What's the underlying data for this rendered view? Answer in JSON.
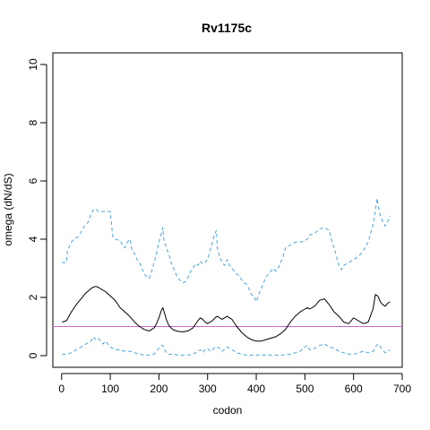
{
  "chart_data": {
    "type": "line",
    "title": "Rv1175c",
    "xlabel": "codon",
    "ylabel": "omega (dN/dS)",
    "xlim": [
      -18,
      700
    ],
    "ylim": [
      -0.4,
      10.4
    ],
    "x_ticks": [
      0,
      100,
      200,
      300,
      400,
      500,
      600,
      700
    ],
    "y_ticks": [
      0,
      2,
      4,
      6,
      8,
      10
    ],
    "reference_line": {
      "y": 1,
      "color": "#cc66cc"
    },
    "series": [
      {
        "style": "dashed",
        "color": "#4aa3df",
        "x": [
          1,
          10,
          12,
          20,
          25,
          35,
          45,
          55,
          60,
          65,
          70,
          75,
          80,
          90,
          100,
          105,
          110,
          120,
          125,
          130,
          135,
          140,
          145,
          150,
          155,
          160,
          165,
          170,
          175,
          180,
          185,
          190,
          195,
          200,
          205,
          208,
          210,
          215,
          220,
          225,
          230,
          235,
          240,
          245,
          250,
          255,
          260,
          265,
          270,
          275,
          280,
          285,
          290,
          295,
          300,
          305,
          310,
          315,
          318,
          320,
          325,
          330,
          335,
          340,
          345,
          350,
          355,
          360,
          365,
          370,
          375,
          380,
          385,
          390,
          395,
          400,
          405,
          410,
          415,
          420,
          425,
          430,
          435,
          440,
          445,
          450,
          455,
          460,
          470,
          480,
          490,
          500,
          505,
          510,
          520,
          530,
          540,
          550,
          555,
          560,
          565,
          570,
          575,
          580,
          590,
          600,
          610,
          620,
          630,
          635,
          640,
          645,
          648,
          650,
          655,
          660,
          665,
          670,
          675
        ],
        "y": [
          3.2,
          3.2,
          3.6,
          3.9,
          4.0,
          4.1,
          4.4,
          4.6,
          4.85,
          5.0,
          5.05,
          4.95,
          4.95,
          4.95,
          4.95,
          4.1,
          4.0,
          3.95,
          3.8,
          3.7,
          3.9,
          4.0,
          3.6,
          3.5,
          3.3,
          3.2,
          3.0,
          2.8,
          2.7,
          2.65,
          2.9,
          3.2,
          3.5,
          3.9,
          4.2,
          4.4,
          4.0,
          3.7,
          3.5,
          3.2,
          3.0,
          2.8,
          2.65,
          2.55,
          2.5,
          2.55,
          2.7,
          2.9,
          3.0,
          3.15,
          3.1,
          3.25,
          3.15,
          3.2,
          3.3,
          3.6,
          3.9,
          4.2,
          4.3,
          3.7,
          3.4,
          3.2,
          3.1,
          3.3,
          3.1,
          3.0,
          2.9,
          2.8,
          2.75,
          2.6,
          2.5,
          2.45,
          2.3,
          2.1,
          2.05,
          1.85,
          2.1,
          2.3,
          2.5,
          2.7,
          2.8,
          2.9,
          3.0,
          2.9,
          3.0,
          3.2,
          3.4,
          3.7,
          3.8,
          3.9,
          3.9,
          3.95,
          4.0,
          4.15,
          4.2,
          4.35,
          4.4,
          4.3,
          3.95,
          3.7,
          3.4,
          3.1,
          2.95,
          3.1,
          3.2,
          3.3,
          3.4,
          3.6,
          3.9,
          4.2,
          4.5,
          5.0,
          5.4,
          5.2,
          4.8,
          4.6,
          4.45,
          4.6,
          4.8
        ]
      },
      {
        "style": "solid",
        "color": "#000000",
        "x": [
          1,
          10,
          20,
          30,
          40,
          50,
          60,
          65,
          70,
          75,
          80,
          90,
          100,
          110,
          120,
          130,
          140,
          150,
          160,
          170,
          180,
          190,
          195,
          200,
          205,
          208,
          210,
          215,
          220,
          225,
          230,
          240,
          250,
          260,
          270,
          280,
          285,
          290,
          295,
          300,
          305,
          310,
          315,
          320,
          325,
          330,
          340,
          350,
          360,
          370,
          380,
          390,
          400,
          410,
          420,
          430,
          440,
          450,
          460,
          470,
          480,
          490,
          500,
          505,
          510,
          520,
          530,
          540,
          550,
          560,
          570,
          580,
          590,
          600,
          610,
          620,
          630,
          640,
          645,
          650,
          655,
          660,
          665,
          670,
          675
        ],
        "y": [
          1.15,
          1.2,
          1.5,
          1.75,
          1.95,
          2.15,
          2.3,
          2.35,
          2.38,
          2.35,
          2.3,
          2.2,
          2.05,
          1.9,
          1.65,
          1.5,
          1.35,
          1.15,
          1.0,
          0.9,
          0.85,
          0.95,
          1.1,
          1.3,
          1.55,
          1.65,
          1.55,
          1.25,
          1.05,
          0.95,
          0.88,
          0.83,
          0.82,
          0.85,
          0.95,
          1.2,
          1.3,
          1.25,
          1.15,
          1.1,
          1.15,
          1.2,
          1.3,
          1.35,
          1.3,
          1.25,
          1.35,
          1.25,
          1.0,
          0.8,
          0.65,
          0.55,
          0.5,
          0.5,
          0.55,
          0.6,
          0.65,
          0.75,
          0.9,
          1.15,
          1.35,
          1.5,
          1.6,
          1.65,
          1.6,
          1.7,
          1.9,
          1.95,
          1.75,
          1.5,
          1.35,
          1.15,
          1.1,
          1.3,
          1.2,
          1.1,
          1.15,
          1.6,
          2.1,
          2.05,
          1.85,
          1.75,
          1.7,
          1.8,
          1.85
        ]
      },
      {
        "style": "dashed",
        "color": "#4aa3df",
        "x": [
          1,
          10,
          20,
          30,
          40,
          50,
          60,
          65,
          70,
          75,
          80,
          85,
          90,
          100,
          110,
          120,
          130,
          140,
          150,
          160,
          170,
          180,
          190,
          195,
          200,
          205,
          208,
          210,
          215,
          220,
          230,
          240,
          250,
          260,
          270,
          280,
          285,
          290,
          295,
          300,
          305,
          310,
          315,
          320,
          325,
          330,
          340,
          350,
          360,
          370,
          380,
          390,
          400,
          410,
          420,
          430,
          440,
          450,
          460,
          470,
          480,
          490,
          500,
          505,
          510,
          520,
          530,
          540,
          545,
          550,
          560,
          570,
          580,
          590,
          600,
          610,
          620,
          630,
          640,
          645,
          650,
          655,
          660,
          665,
          670,
          675
        ],
        "y": [
          0.05,
          0.05,
          0.1,
          0.2,
          0.3,
          0.4,
          0.5,
          0.65,
          0.55,
          0.6,
          0.5,
          0.4,
          0.5,
          0.3,
          0.2,
          0.2,
          0.15,
          0.15,
          0.1,
          0.05,
          0.02,
          0.02,
          0.05,
          0.15,
          0.25,
          0.35,
          0.35,
          0.25,
          0.1,
          0.05,
          0.05,
          0.02,
          0.02,
          0.02,
          0.05,
          0.15,
          0.2,
          0.1,
          0.2,
          0.25,
          0.15,
          0.2,
          0.3,
          0.3,
          0.25,
          0.15,
          0.3,
          0.2,
          0.1,
          0.05,
          0.02,
          0.02,
          0.02,
          0.02,
          0.02,
          0.02,
          0.02,
          0.02,
          0.03,
          0.05,
          0.1,
          0.15,
          0.3,
          0.35,
          0.2,
          0.25,
          0.35,
          0.4,
          0.35,
          0.3,
          0.25,
          0.15,
          0.1,
          0.05,
          0.05,
          0.1,
          0.15,
          0.1,
          0.15,
          0.3,
          0.4,
          0.3,
          0.2,
          0.1,
          0.15,
          0.2
        ]
      }
    ]
  }
}
